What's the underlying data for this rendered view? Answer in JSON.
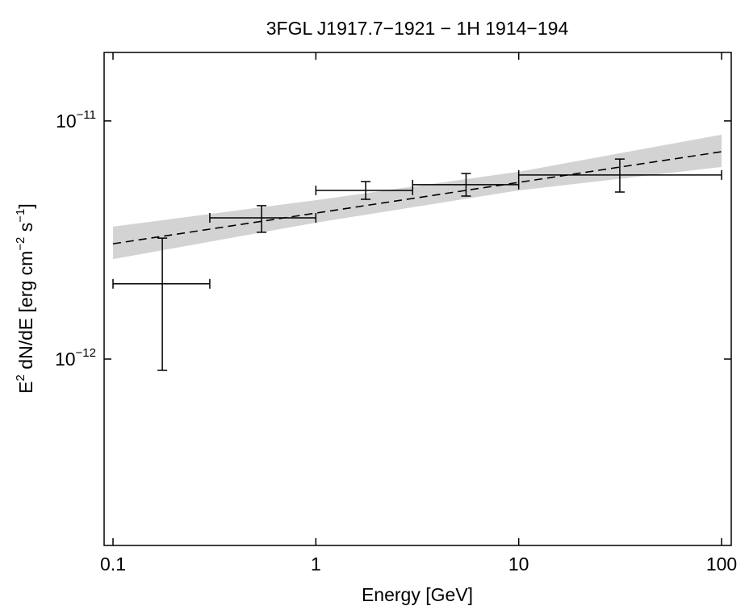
{
  "chart_data": {
    "type": "scatter",
    "title": "3FGL J1917.7−1921 − 1H 1914−194",
    "x_label": "Energy [GeV]",
    "y_label": "E2 dN/dE [erg cm−2 s−1]",
    "x_scale": "log",
    "y_scale": "log",
    "xlim": [
      0.0904,
      111.6
    ],
    "ylim": [
      1.65e-13,
      1.94e-11
    ],
    "xticks": [
      0.1,
      1,
      10,
      100
    ],
    "yticks": [
      {
        "value": 1e-12,
        "label": "10−12"
      },
      {
        "value": 1e-11,
        "label": "10−11"
      }
    ],
    "points": {
      "color": "#000000",
      "x": [
        0.175,
        0.54,
        1.76,
        5.5,
        31.5
      ],
      "x_low": [
        0.1,
        0.3,
        1,
        3,
        10
      ],
      "x_high": [
        0.3,
        1,
        3,
        10,
        100
      ],
      "values": [
        2.07e-12,
        3.92e-12,
        5.11e-12,
        5.4e-12,
        5.93e-12
      ],
      "y_low": [
        8.97e-13,
        3.41e-12,
        4.69e-12,
        4.84e-12,
        5.03e-12
      ],
      "y_high": [
        3.22e-12,
        4.41e-12,
        5.57e-12,
        6.02e-12,
        6.92e-12
      ]
    },
    "fit": {
      "color": "#000000",
      "dashed": true,
      "x": [
        0.1,
        100
      ],
      "values": [
        3.05e-12,
        7.43e-12
      ]
    },
    "band": {
      "color": "#d3d3d3",
      "x": [
        0.1,
        1,
        10,
        100
      ],
      "upper": [
        3.6e-12,
        4.65e-12,
        6.12e-12,
        8.76e-12
      ],
      "lower": [
        2.63e-12,
        3.74e-12,
        5.11e-12,
        6.41e-12
      ]
    }
  }
}
